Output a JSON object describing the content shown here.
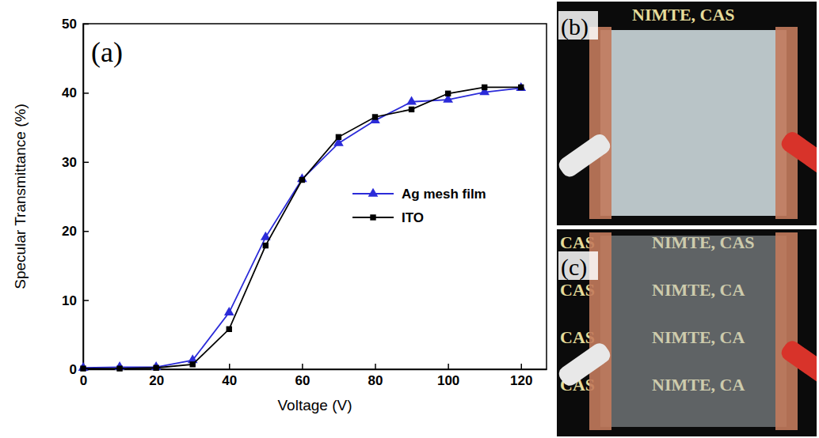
{
  "chart_data": {
    "type": "line",
    "panel": "(a)",
    "x_label": "Voltage (V)",
    "y_label": "Specular Transmittance (%)",
    "x": [
      0,
      10,
      20,
      30,
      40,
      50,
      60,
      70,
      80,
      90,
      100,
      110,
      120
    ],
    "series": [
      {
        "name": "Ag mesh film",
        "color": "#2b2bd9",
        "marker": "triangle",
        "line_style": "solid",
        "values": [
          0.2,
          0.3,
          0.3,
          1.3,
          8.2,
          19.1,
          27.5,
          32.7,
          36.0,
          38.7,
          39.0,
          40.1,
          40.7
        ]
      },
      {
        "name": "ITO",
        "color": "#000000",
        "marker": "square",
        "line_style": "solid",
        "values": [
          0.1,
          0.1,
          0.2,
          0.7,
          5.8,
          17.9,
          27.4,
          33.6,
          36.5,
          37.6,
          39.9,
          40.8,
          40.8
        ]
      }
    ],
    "xlim": [
      0,
      127
    ],
    "xticks": [
      0,
      20,
      40,
      60,
      80,
      100,
      120
    ],
    "ylim": [
      0,
      50
    ],
    "yticks": [
      0,
      10,
      20,
      30,
      40,
      50
    ],
    "legend": "lower right"
  },
  "photos": [
    {
      "panel": "(b)",
      "rows": [
        [
          "NIMTE, CAS"
        ]
      ]
    },
    {
      "panel": "(c)",
      "rows": [
        [
          "CAS",
          "NIMTE, CAS"
        ],
        [
          "CAS",
          "NIMTE, CA"
        ],
        [
          "CAS",
          "NIMTE, CA"
        ],
        [
          "CAS",
          "NIMTE, CA"
        ]
      ]
    }
  ]
}
